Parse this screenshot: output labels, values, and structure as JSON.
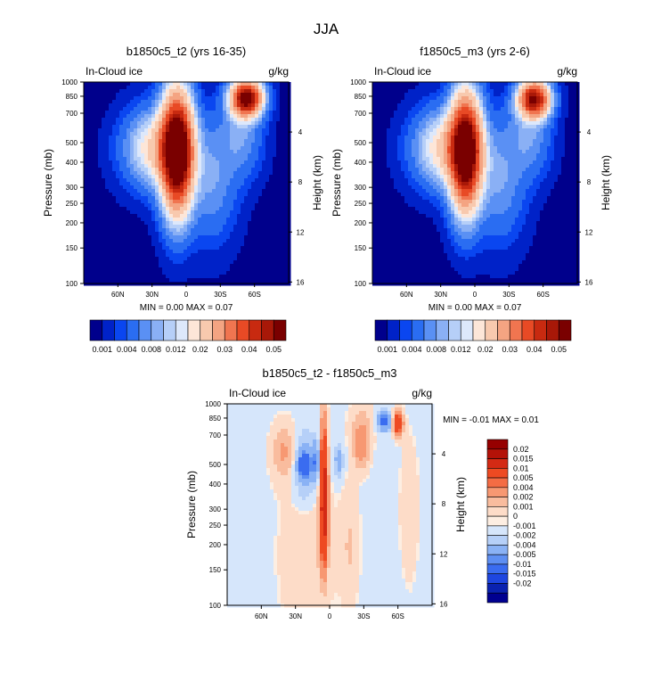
{
  "season_title": "JJA",
  "colors": {
    "ocean_fill": "#00008c",
    "background": "#ffffff"
  },
  "chart_data": [
    {
      "id": "panel1",
      "type": "heatmap",
      "title": "b1850c5_t2 (yrs 16-35)",
      "left_label": "In-Cloud ice",
      "units_label": "g/kg",
      "ylabel": "Pressure (mb)",
      "ylabel_right": "Height (km)",
      "x_ticks": [
        "60N",
        "30N",
        "0",
        "30S",
        "60S"
      ],
      "x_tick_lat": [
        60,
        30,
        0,
        -30,
        -60
      ],
      "xlim": [
        90,
        -90
      ],
      "y_ticks": [
        100,
        150,
        200,
        250,
        300,
        400,
        500,
        700,
        850,
        1000
      ],
      "ylim": [
        1000,
        100
      ],
      "height_ticks": [
        4,
        8,
        12,
        16
      ],
      "stats": {
        "min_label": "MIN =",
        "min": "0.00",
        "max_label": "MAX =",
        "max": "0.07"
      },
      "colorbar": {
        "orientation": "horizontal",
        "tick_labels": [
          "0.001",
          "0.004",
          "0.008",
          "0.012",
          "0.02",
          "0.03",
          "0.04",
          "0.05"
        ],
        "colors": [
          "#00008c",
          "#0022c8",
          "#0a46f0",
          "#2a6df2",
          "#5a90f4",
          "#8ab0f5",
          "#b6cff8",
          "#dde8fb",
          "#fde6d8",
          "#f8c9ae",
          "#f4a482",
          "#f07550",
          "#e84a25",
          "#c82a10",
          "#a81808",
          "#7a0000"
        ]
      },
      "field": {
        "levels": [
          0.0002,
          0.001,
          0.002,
          0.004,
          0.006,
          0.008,
          0.01,
          0.012,
          0.015,
          0.02,
          0.025,
          0.03,
          0.035,
          0.04,
          0.045,
          0.05
        ],
        "colors": [
          "#00008c",
          "#0022c8",
          "#0a46f0",
          "#2a6df2",
          "#5a90f4",
          "#8ab0f5",
          "#b6cff8",
          "#dde8fb",
          "#fde6d8",
          "#f8c9ae",
          "#f4a482",
          "#f07550",
          "#e84a25",
          "#c82a10",
          "#a81808",
          "#7a0000"
        ],
        "blobs": [
          {
            "lat": 8,
            "p": 450,
            "slat": 9,
            "sp": 250,
            "amp": 0.06
          },
          {
            "lat": 25,
            "p": 470,
            "slat": 18,
            "sp": 150,
            "amp": 0.016
          },
          {
            "lat": -22,
            "p": 330,
            "slat": 14,
            "sp": 180,
            "amp": 0.006
          },
          {
            "lat": -53,
            "p": 830,
            "slat": 9,
            "sp": 120,
            "amp": 0.05
          },
          {
            "lat": -48,
            "p": 550,
            "slat": 12,
            "sp": 200,
            "amp": 0.006
          }
        ]
      }
    },
    {
      "id": "panel2",
      "type": "heatmap",
      "title": "f1850c5_m3 (yrs 2-6)",
      "left_label": "In-Cloud ice",
      "units_label": "g/kg",
      "ylabel": "Pressure (mb)",
      "ylabel_right": "Height (km)",
      "x_ticks": [
        "60N",
        "30N",
        "0",
        "30S",
        "60S"
      ],
      "x_tick_lat": [
        60,
        30,
        0,
        -30,
        -60
      ],
      "xlim": [
        90,
        -90
      ],
      "y_ticks": [
        100,
        150,
        200,
        250,
        300,
        400,
        500,
        700,
        850,
        1000
      ],
      "ylim": [
        1000,
        100
      ],
      "height_ticks": [
        4,
        8,
        12,
        16
      ],
      "stats": {
        "min_label": "MIN =",
        "min": "0.00",
        "max_label": "MAX =",
        "max": "0.07"
      },
      "colorbar": {
        "orientation": "horizontal",
        "tick_labels": [
          "0.001",
          "0.004",
          "0.008",
          "0.012",
          "0.02",
          "0.03",
          "0.04",
          "0.05"
        ],
        "colors": [
          "#00008c",
          "#0022c8",
          "#0a46f0",
          "#2a6df2",
          "#5a90f4",
          "#8ab0f5",
          "#b6cff8",
          "#dde8fb",
          "#fde6d8",
          "#f8c9ae",
          "#f4a482",
          "#f07550",
          "#e84a25",
          "#c82a10",
          "#a81808",
          "#7a0000"
        ]
      },
      "field": {
        "levels": [
          0.0002,
          0.001,
          0.002,
          0.004,
          0.006,
          0.008,
          0.01,
          0.012,
          0.015,
          0.02,
          0.025,
          0.03,
          0.035,
          0.04,
          0.045,
          0.05
        ],
        "colors": [
          "#00008c",
          "#0022c8",
          "#0a46f0",
          "#2a6df2",
          "#5a90f4",
          "#8ab0f5",
          "#b6cff8",
          "#dde8fb",
          "#fde6d8",
          "#f8c9ae",
          "#f4a482",
          "#f07550",
          "#e84a25",
          "#c82a10",
          "#a81808",
          "#7a0000"
        ],
        "blobs": [
          {
            "lat": 8,
            "p": 450,
            "slat": 9,
            "sp": 240,
            "amp": 0.055
          },
          {
            "lat": 25,
            "p": 470,
            "slat": 18,
            "sp": 150,
            "amp": 0.016
          },
          {
            "lat": -22,
            "p": 330,
            "slat": 14,
            "sp": 180,
            "amp": 0.006
          },
          {
            "lat": -52,
            "p": 820,
            "slat": 9,
            "sp": 120,
            "amp": 0.045
          },
          {
            "lat": -48,
            "p": 550,
            "slat": 12,
            "sp": 200,
            "amp": 0.006
          }
        ]
      }
    },
    {
      "id": "panel3",
      "type": "heatmap",
      "title": "b1850c5_t2 - f1850c5_m3",
      "left_label": "In-Cloud ice",
      "units_label": "g/kg",
      "ylabel": "Pressure (mb)",
      "ylabel_right": "Height (km)",
      "x_ticks": [
        "60N",
        "30N",
        "0",
        "30S",
        "60S"
      ],
      "x_tick_lat": [
        60,
        30,
        0,
        -30,
        -60
      ],
      "xlim": [
        90,
        -90
      ],
      "y_ticks": [
        100,
        150,
        200,
        250,
        300,
        400,
        500,
        700,
        850,
        1000
      ],
      "ylim": [
        1000,
        100
      ],
      "height_ticks": [
        4,
        8,
        12,
        16
      ],
      "stats": {
        "min_label": "MIN =",
        "min": "-0.01",
        "max_label": "MAX =",
        "max": "0.01"
      },
      "colorbar": {
        "orientation": "vertical",
        "tick_labels": [
          "0.02",
          "0.015",
          "0.01",
          "0.005",
          "0.004",
          "0.002",
          "0.001",
          "0",
          "-0.001",
          "-0.002",
          "-0.004",
          "-0.005",
          "-0.01",
          "-0.015",
          "-0.02"
        ],
        "colors": [
          "#960000",
          "#b41208",
          "#d42a14",
          "#ee4a22",
          "#f46c44",
          "#f79872",
          "#f9bc9e",
          "#fddcc8",
          "#fdeee2",
          "#d6e6fb",
          "#b6d0f8",
          "#8ab2f5",
          "#5e8ff2",
          "#3a6cf0",
          "#1e46e0",
          "#0a22b0",
          "#000090"
        ]
      },
      "field": {
        "levels": [
          -0.02,
          -0.015,
          -0.01,
          -0.005,
          -0.004,
          -0.002,
          -0.001,
          -5e-05,
          5e-05,
          0.001,
          0.002,
          0.004,
          0.005,
          0.01,
          0.015,
          0.02
        ],
        "colors": [
          "#000090",
          "#0a22b0",
          "#1e46e0",
          "#3a6cf0",
          "#5e8ff2",
          "#8ab2f5",
          "#b6d0f8",
          "#d6e6fb",
          "#fdeee2",
          "#fddcc8",
          "#f9bc9e",
          "#f79872",
          "#f46c44",
          "#ee4a22",
          "#d42a14",
          "#b41208",
          "#960000"
        ],
        "background_value": -0.0004,
        "blobs": [
          {
            "lat": 5,
            "p": 400,
            "slat": 2.2,
            "sp": 260,
            "amp": 0.011
          },
          {
            "lat": 5,
            "p": 250,
            "slat": 2.5,
            "sp": 100,
            "amp": 0.006
          },
          {
            "lat": 12,
            "p": 520,
            "slat": 2.0,
            "sp": 90,
            "amp": -0.004
          },
          {
            "lat": 22,
            "p": 480,
            "slat": 7,
            "sp": 160,
            "amp": -0.003
          },
          {
            "lat": 22,
            "p": 500,
            "slat": 4,
            "sp": 50,
            "amp": -0.006
          },
          {
            "lat": 40,
            "p": 580,
            "slat": 8,
            "sp": 150,
            "amp": 0.0025
          },
          {
            "lat": -8,
            "p": 520,
            "slat": 2.5,
            "sp": 70,
            "amp": -0.003
          },
          {
            "lat": -28,
            "p": 600,
            "slat": 5,
            "sp": 120,
            "amp": 0.003
          },
          {
            "lat": -28,
            "p": 800,
            "slat": 8,
            "sp": 180,
            "amp": 0.0015
          },
          {
            "lat": -48,
            "p": 820,
            "slat": 4,
            "sp": 60,
            "amp": -0.006
          },
          {
            "lat": -60,
            "p": 800,
            "slat": 3,
            "sp": 80,
            "amp": 0.009
          },
          {
            "lat": 20,
            "p": 180,
            "slat": 18,
            "sp": 200,
            "amp": 0.0012
          },
          {
            "lat": -18,
            "p": 200,
            "slat": 6,
            "sp": 120,
            "amp": 0.0014
          },
          {
            "lat": -70,
            "p": 300,
            "slat": 6,
            "sp": 250,
            "amp": 0.0012
          }
        ]
      }
    }
  ]
}
